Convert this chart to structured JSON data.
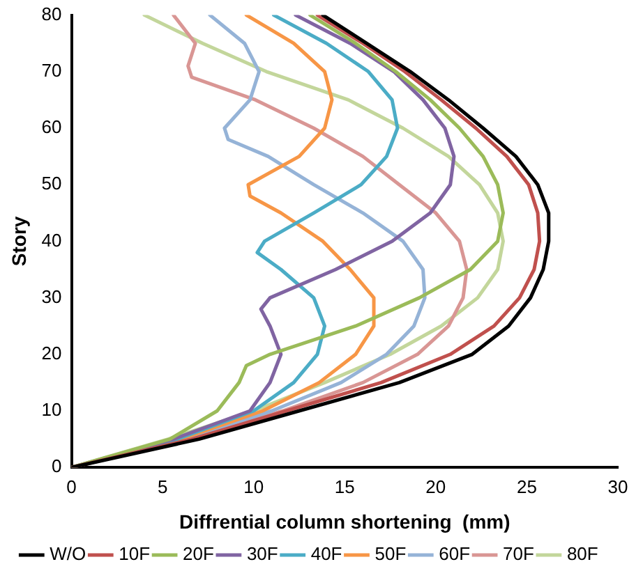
{
  "chart_data": {
    "type": "line",
    "xlabel": "Diffrential column shortening  (mm)",
    "ylabel": "Story",
    "xlim": [
      0,
      30
    ],
    "xticks": [
      0,
      5,
      10,
      15,
      20,
      25,
      30
    ],
    "ylim": [
      0,
      80
    ],
    "yticks": [
      0,
      10,
      20,
      30,
      40,
      50,
      60,
      70,
      80
    ],
    "grid": false,
    "legend": "bottom",
    "marker": "none",
    "line_style": "solid",
    "series": [
      {
        "name": "W/O",
        "color": "#000000",
        "x": [
          0,
          7,
          12.5,
          18,
          22,
          24,
          25.2,
          25.9,
          26.2,
          26.2,
          25.6,
          24.4,
          22.6,
          20.7,
          18.6,
          16.2,
          13.8
        ],
        "values": [
          0,
          5,
          10,
          15,
          20,
          25,
          30,
          35,
          40,
          45,
          50,
          55,
          60,
          65,
          70,
          75,
          80
        ]
      },
      {
        "name": "10F",
        "color": "#c0504d",
        "x": [
          0,
          6.6,
          11.8,
          17,
          20.8,
          23.2,
          24.6,
          25.4,
          25.7,
          25.6,
          25.1,
          23.9,
          22.2,
          20.3,
          18.3,
          16,
          13.5
        ],
        "values": [
          0,
          5,
          10,
          15,
          20,
          25,
          30,
          35,
          40,
          45,
          50,
          55,
          60,
          65,
          70,
          75,
          80
        ]
      },
      {
        "name": "20F",
        "color": "#9bbb59",
        "x": [
          0,
          5.4,
          8,
          9.2,
          9.6,
          10.9,
          15.6,
          19.1,
          21.9,
          23.4,
          23.7,
          23.4,
          22.6,
          21.3,
          19.7,
          17.8,
          15.6,
          13.1
        ],
        "values": [
          0,
          5,
          10,
          15,
          18,
          20,
          25,
          30,
          35,
          40,
          45,
          50,
          55,
          60,
          65,
          70,
          75,
          80
        ]
      },
      {
        "name": "30F",
        "color": "#8064a2",
        "x": [
          0,
          5.6,
          9.8,
          10.9,
          11.5,
          10.9,
          10.4,
          10.9,
          14.5,
          17.6,
          19.7,
          20.8,
          21,
          20.5,
          19.3,
          17.7,
          15.3,
          12.3
        ],
        "values": [
          0,
          5,
          10,
          15,
          20,
          25,
          28,
          30,
          35,
          40,
          45,
          50,
          55,
          60,
          65,
          70,
          75,
          80
        ]
      },
      {
        "name": "40F",
        "color": "#4bacc6",
        "x": [
          0,
          5.8,
          10,
          12.2,
          13.5,
          13.9,
          13.3,
          11.5,
          10.2,
          10.6,
          13.3,
          15.9,
          17.3,
          17.9,
          17.6,
          16.3,
          14,
          11.1
        ],
        "values": [
          0,
          5,
          10,
          15,
          20,
          25,
          30,
          35,
          38,
          40,
          45,
          50,
          55,
          60,
          65,
          70,
          75,
          80
        ]
      },
      {
        "name": "50F",
        "color": "#f79646",
        "x": [
          0,
          6,
          10.5,
          13.6,
          15.6,
          16.6,
          16.6,
          15.3,
          13.8,
          11.5,
          9.8,
          9.7,
          12.5,
          13.9,
          14.3,
          13.9,
          12.2,
          9.6
        ],
        "values": [
          0,
          5,
          10,
          15,
          20,
          25,
          30,
          35,
          40,
          45,
          48,
          50,
          55,
          60,
          65,
          70,
          75,
          80
        ]
      },
      {
        "name": "60F",
        "color": "#95b3d7",
        "x": [
          0,
          6.2,
          11,
          14.8,
          17.3,
          18.8,
          19.4,
          19.3,
          18.2,
          16,
          13.3,
          10.8,
          8.6,
          8.4,
          9.8,
          10.3,
          9.5,
          7.6
        ],
        "values": [
          0,
          5,
          10,
          15,
          20,
          25,
          30,
          35,
          40,
          45,
          50,
          55,
          58,
          60,
          65,
          70,
          75,
          80
        ]
      },
      {
        "name": "70F",
        "color": "#d99694",
        "x": [
          0,
          6.4,
          11.6,
          16,
          19,
          20.7,
          21.5,
          21.7,
          21.3,
          20,
          18,
          16,
          13.3,
          10.1,
          6.6,
          6.4,
          6.8,
          5.6
        ],
        "values": [
          0,
          5,
          10,
          15,
          20,
          25,
          30,
          35,
          40,
          45,
          50,
          55,
          60,
          65,
          69,
          71,
          75,
          80
        ]
      },
      {
        "name": "80F",
        "color": "#c3d69b",
        "x": [
          0,
          5.3,
          10,
          13.9,
          17.5,
          20.3,
          22.3,
          23.4,
          23.7,
          23.4,
          22.4,
          20.7,
          18.2,
          15.2,
          10.7,
          7.2,
          4
        ],
        "values": [
          0,
          5,
          10,
          15,
          20,
          25,
          30,
          35,
          40,
          45,
          50,
          55,
          60,
          65,
          70,
          75,
          80
        ]
      }
    ]
  }
}
